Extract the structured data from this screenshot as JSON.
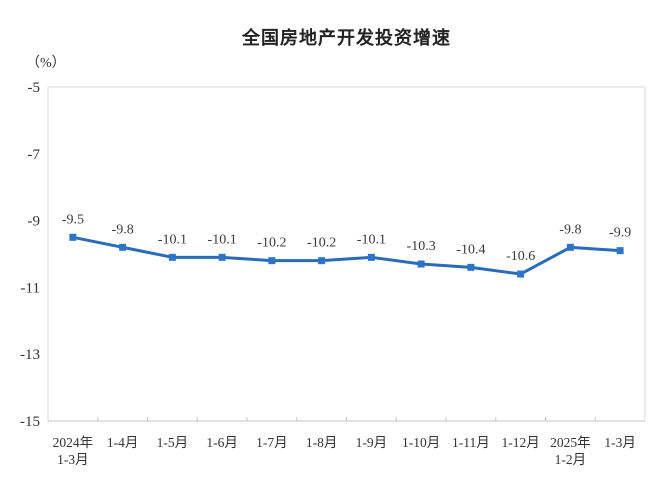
{
  "chart_data": {
    "type": "line",
    "title": "全国房地产开发投资增速",
    "ylabel": "（%）",
    "xlabel": "",
    "categories": [
      "2024年\n1-3月",
      "1-4月",
      "1-5月",
      "1-6月",
      "1-7月",
      "1-8月",
      "1-9月",
      "1-10月",
      "1-11月",
      "1-12月",
      "2025年\n1-2月",
      "1-3月"
    ],
    "values": [
      -9.5,
      -9.8,
      -10.1,
      -10.1,
      -10.2,
      -10.2,
      -10.1,
      -10.3,
      -10.4,
      -10.6,
      -9.8,
      -9.9
    ],
    "data_labels": [
      "-9.5",
      "-9.8",
      "-10.1",
      "-10.1",
      "-10.2",
      "-10.2",
      "-10.1",
      "-10.3",
      "-10.4",
      "-10.6",
      "-9.8",
      "-9.9"
    ],
    "y_ticks": [
      -5,
      -7,
      -9,
      -11,
      -13,
      -15
    ],
    "y_tick_labels": [
      "-5",
      "-7",
      "-9",
      "-11",
      "-13",
      "-15"
    ],
    "ylim": [
      -15,
      -5
    ],
    "grid": false,
    "legend": null,
    "colors": {
      "line": "#2b6cb8",
      "marker": "#2d74c9",
      "data_label": "#3a3a3a",
      "tick_label": "#333333",
      "plot_border": "#d9d9d9",
      "axis_line": "#c4c4c4",
      "title": "#222222"
    }
  }
}
